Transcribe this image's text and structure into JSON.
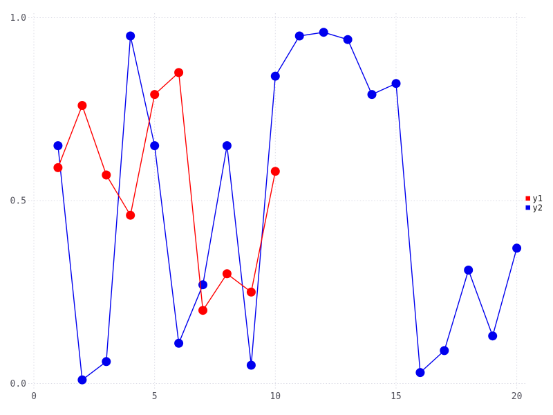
{
  "chart_data": {
    "type": "line",
    "title": "",
    "xlabel": "",
    "ylabel": "",
    "xlim": [
      0,
      20
    ],
    "ylim": [
      0.0,
      1.0
    ],
    "grid": "dotted",
    "legend_position": "right-center",
    "x_ticks": {
      "values": [
        0,
        5,
        10,
        15,
        20
      ],
      "labels": [
        "0",
        "5",
        "10",
        "15",
        "20"
      ]
    },
    "y_ticks": {
      "values": [
        0.0,
        0.5,
        1.0
      ],
      "labels": [
        "0.0",
        "0.5",
        "1.0"
      ]
    },
    "series": [
      {
        "name": "y1",
        "color": "#ff0000",
        "x": [
          1,
          2,
          3,
          4,
          5,
          6,
          7,
          8,
          9,
          10
        ],
        "y": [
          0.59,
          0.76,
          0.57,
          0.46,
          0.79,
          0.85,
          0.2,
          0.3,
          0.25,
          0.58
        ]
      },
      {
        "name": "y2",
        "color": "#0000ee",
        "x": [
          1,
          2,
          3,
          4,
          5,
          6,
          7,
          8,
          9,
          10,
          11,
          12,
          13,
          14,
          15,
          16,
          17,
          18,
          19,
          20
        ],
        "y": [
          0.65,
          0.01,
          0.06,
          0.95,
          0.65,
          0.11,
          0.27,
          0.65,
          0.05,
          0.84,
          0.95,
          0.96,
          0.94,
          0.79,
          0.82,
          0.03,
          0.09,
          0.31,
          0.13,
          0.37
        ]
      }
    ]
  },
  "styles": {
    "background": "#ffffff",
    "grid_color": "#dcdce6",
    "tick_label_color": "#52525c",
    "legend_text_color": "#1a1a1a"
  }
}
